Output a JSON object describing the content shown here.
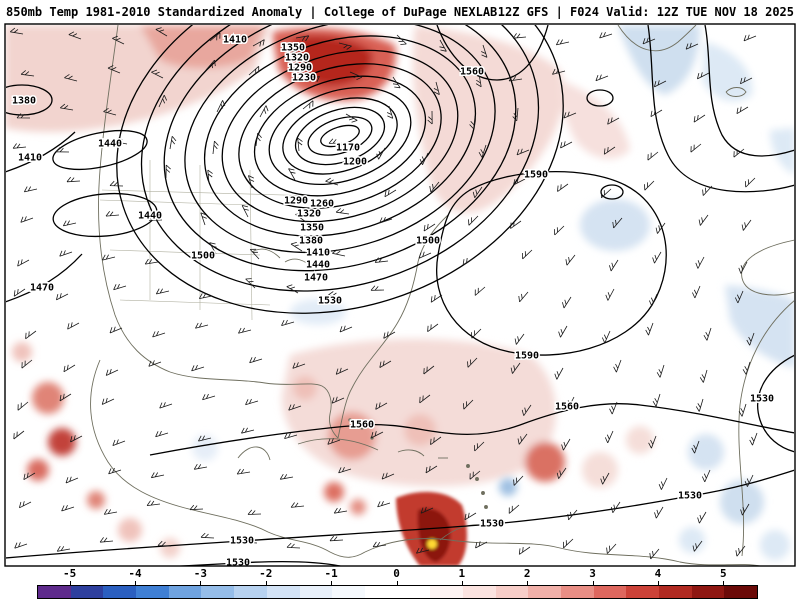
{
  "header": {
    "left": "850mb Temp 1981-2010 Standardized Anomaly | College of DuPage NEXLAB",
    "right": "12Z GFS | F024 Valid: 12Z TUE NOV 18 2025"
  },
  "map": {
    "contour_labels": [
      {
        "text": "1410"
      },
      {
        "text": "1350"
      },
      {
        "text": "1320"
      },
      {
        "text": "1290"
      },
      {
        "text": "1230"
      },
      {
        "text": "1380"
      },
      {
        "text": "1560"
      },
      {
        "text": "1440"
      },
      {
        "text": "1410"
      },
      {
        "text": "1170"
      },
      {
        "text": "1200"
      },
      {
        "text": "1590"
      },
      {
        "text": "1290"
      },
      {
        "text": "1260"
      },
      {
        "text": "1440"
      },
      {
        "text": "1320"
      },
      {
        "text": "1350"
      },
      {
        "text": "1380"
      },
      {
        "text": "1500"
      },
      {
        "text": "1410"
      },
      {
        "text": "1500"
      },
      {
        "text": "1440"
      },
      {
        "text": "1470"
      },
      {
        "text": "1470"
      },
      {
        "text": "1530"
      },
      {
        "text": "1590"
      },
      {
        "text": "1560"
      },
      {
        "text": "1530"
      },
      {
        "text": "1560"
      },
      {
        "text": "1530"
      },
      {
        "text": "1530"
      },
      {
        "text": "1530"
      },
      {
        "text": "1530"
      }
    ]
  },
  "colorbar": {
    "ticks": [
      "-5",
      "-4",
      "-3",
      "-2",
      "-1",
      "0",
      "1",
      "2",
      "3",
      "4",
      "5"
    ],
    "colors": [
      "#5e2a8c",
      "#2e3f9e",
      "#2b5fc0",
      "#3f7fd4",
      "#6fa3e0",
      "#95bde9",
      "#b7d2f0",
      "#d3e3f6",
      "#e8f0fa",
      "#f5f9fd",
      "#ffffff",
      "#ffffff",
      "#fdf3f2",
      "#fbe3e0",
      "#f7cdc8",
      "#f1b0a9",
      "#e98e85",
      "#de675e",
      "#cc4238",
      "#b12a21",
      "#8f1712",
      "#6b0a08"
    ],
    "anomaly_extreme_core_color": "#ffd930"
  }
}
